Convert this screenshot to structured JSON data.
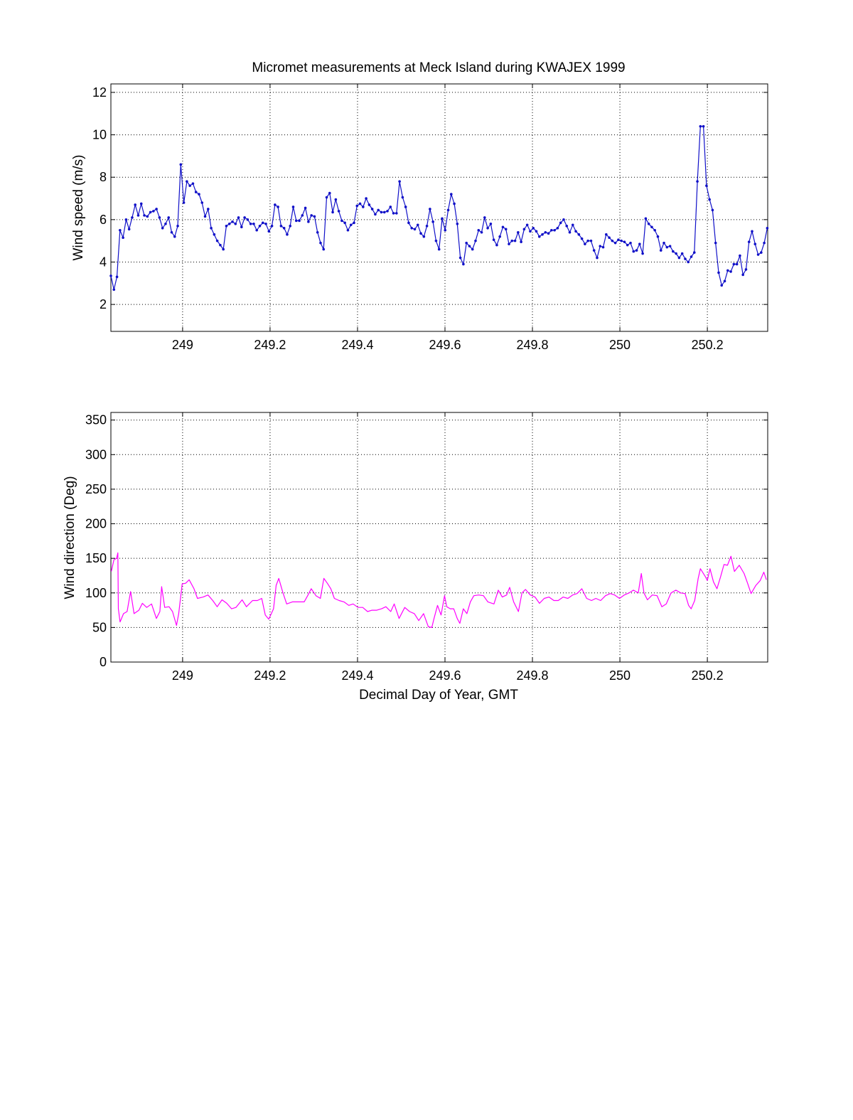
{
  "chart_data": [
    {
      "type": "line",
      "title": "Micromet measurements at Meck Island during KWAJEX 1999",
      "xlabel": "",
      "ylabel": "Wind speed (m/s)",
      "xlim": [
        248.836,
        250.338
      ],
      "ylim": [
        0.73,
        12.4
      ],
      "xticks": [
        249,
        249.2,
        249.4,
        249.6,
        249.8,
        250,
        250.2
      ],
      "xtick_labels": [
        "249",
        "249.2",
        "249.4",
        "249.6",
        "249.8",
        "250",
        "250.2"
      ],
      "yticks": [
        2,
        4,
        6,
        8,
        10,
        12
      ],
      "ytick_labels": [
        "2",
        "4",
        "6",
        "8",
        "10",
        "12"
      ],
      "grid": true,
      "color": "#1010c8",
      "marker": "dot",
      "series": [
        {
          "name": "Wind speed",
          "x_start": 248.836,
          "x_end": 250.337,
          "values": [
            3.35,
            2.7,
            3.3,
            5.5,
            5.15,
            6.0,
            5.55,
            6.1,
            6.7,
            6.2,
            6.75,
            6.2,
            6.15,
            6.35,
            6.4,
            6.5,
            6.1,
            5.6,
            5.8,
            6.1,
            5.4,
            5.2,
            5.7,
            8.6,
            6.8,
            7.8,
            7.6,
            7.7,
            7.3,
            7.2,
            6.8,
            6.15,
            6.5,
            5.6,
            5.3,
            5.0,
            4.8,
            4.6,
            5.7,
            5.8,
            5.9,
            5.8,
            6.1,
            5.65,
            6.1,
            6.0,
            5.8,
            5.8,
            5.5,
            5.7,
            5.85,
            5.8,
            5.45,
            5.7,
            6.7,
            6.6,
            5.7,
            5.6,
            5.3,
            5.7,
            6.6,
            5.95,
            5.95,
            6.2,
            6.55,
            5.9,
            6.2,
            6.15,
            5.4,
            4.9,
            4.6,
            7.05,
            7.25,
            6.35,
            6.95,
            6.4,
            5.95,
            5.85,
            5.5,
            5.75,
            5.85,
            6.65,
            6.75,
            6.6,
            7.0,
            6.7,
            6.5,
            6.25,
            6.45,
            6.35,
            6.35,
            6.4,
            6.6,
            6.3,
            6.3,
            7.8,
            7.05,
            6.6,
            5.85,
            5.6,
            5.55,
            5.75,
            5.35,
            5.2,
            5.7,
            6.5,
            5.9,
            5.0,
            4.6,
            6.05,
            5.5,
            6.45,
            7.2,
            6.75,
            5.8,
            4.2,
            3.9,
            4.9,
            4.75,
            4.6,
            5.0,
            5.5,
            5.4,
            6.1,
            5.6,
            5.8,
            5.05,
            4.8,
            5.2,
            5.65,
            5.55,
            4.85,
            5.0,
            5.0,
            5.4,
            4.95,
            5.55,
            5.75,
            5.45,
            5.6,
            5.45,
            5.2,
            5.3,
            5.4,
            5.35,
            5.5,
            5.5,
            5.6,
            5.85,
            6.0,
            5.7,
            5.4,
            5.75,
            5.45,
            5.3,
            5.1,
            4.85,
            5.0,
            5.0,
            4.55,
            4.2,
            4.75,
            4.7,
            5.3,
            5.15,
            5.0,
            4.9,
            5.05,
            5.0,
            4.95,
            4.8,
            4.9,
            4.5,
            4.55,
            4.85,
            4.4,
            6.05,
            5.8,
            5.65,
            5.5,
            5.2,
            4.55,
            4.9,
            4.7,
            4.75,
            4.5,
            4.4,
            4.2,
            4.4,
            4.15,
            4.0,
            4.25,
            4.45,
            7.8,
            10.4,
            10.4,
            7.6,
            6.95,
            6.45,
            4.9,
            3.5,
            2.9,
            3.1,
            3.6,
            3.55,
            3.9,
            3.9,
            4.3,
            3.4,
            3.65,
            4.95,
            5.45,
            4.85,
            4.35,
            4.45,
            4.9,
            5.6
          ]
        }
      ]
    },
    {
      "type": "line",
      "title": "",
      "xlabel": "Decimal Day of Year, GMT",
      "ylabel": "Wind direction (Deg)",
      "xlim": [
        248.836,
        250.338
      ],
      "ylim": [
        0,
        361
      ],
      "xticks": [
        249,
        249.2,
        249.4,
        249.6,
        249.8,
        250,
        250.2
      ],
      "xtick_labels": [
        "249",
        "249.2",
        "249.4",
        "249.6",
        "249.8",
        "250",
        "250.2"
      ],
      "yticks": [
        0,
        50,
        100,
        150,
        200,
        250,
        300,
        350
      ],
      "ytick_labels": [
        "0",
        "50",
        "100",
        "150",
        "200",
        "250",
        "300",
        "350"
      ],
      "grid": true,
      "color": "#ff00ff",
      "series": [
        {
          "name": "Wind direction",
          "points": [
            [
              248.837,
              131
            ],
            [
              248.843,
              148
            ],
            [
              248.849,
              150
            ],
            [
              248.852,
              158
            ],
            [
              248.853,
              77
            ],
            [
              248.857,
              58
            ],
            [
              248.865,
              70
            ],
            [
              248.873,
              73
            ],
            [
              248.881,
              102
            ],
            [
              248.889,
              70
            ],
            [
              248.9,
              75
            ],
            [
              248.908,
              85
            ],
            [
              248.918,
              79
            ],
            [
              248.929,
              84
            ],
            [
              248.94,
              63
            ],
            [
              248.948,
              73
            ],
            [
              248.952,
              109
            ],
            [
              248.959,
              79
            ],
            [
              248.969,
              80
            ],
            [
              248.977,
              73
            ],
            [
              248.986,
              53
            ],
            [
              248.991,
              70
            ],
            [
              248.999,
              113
            ],
            [
              249.007,
              114
            ],
            [
              249.015,
              119
            ],
            [
              249.026,
              106
            ],
            [
              249.034,
              92
            ],
            [
              249.047,
              94
            ],
            [
              249.058,
              97
            ],
            [
              249.069,
              89
            ],
            [
              249.079,
              80
            ],
            [
              249.09,
              90
            ],
            [
              249.101,
              85
            ],
            [
              249.112,
              77
            ],
            [
              249.122,
              79
            ],
            [
              249.136,
              90
            ],
            [
              249.146,
              80
            ],
            [
              249.16,
              89
            ],
            [
              249.171,
              89
            ],
            [
              249.181,
              92
            ],
            [
              249.189,
              68
            ],
            [
              249.197,
              62
            ],
            [
              249.208,
              77
            ],
            [
              249.214,
              111
            ],
            [
              249.22,
              121
            ],
            [
              249.229,
              101
            ],
            [
              249.238,
              84
            ],
            [
              249.251,
              87
            ],
            [
              249.264,
              87
            ],
            [
              249.278,
              87
            ],
            [
              249.286,
              96
            ],
            [
              249.294,
              106
            ],
            [
              249.305,
              96
            ],
            [
              249.315,
              92
            ],
            [
              249.323,
              121
            ],
            [
              249.331,
              114
            ],
            [
              249.339,
              106
            ],
            [
              249.347,
              92
            ],
            [
              249.358,
              89
            ],
            [
              249.369,
              87
            ],
            [
              249.38,
              82
            ],
            [
              249.39,
              84
            ],
            [
              249.401,
              79
            ],
            [
              249.412,
              79
            ],
            [
              249.423,
              73
            ],
            [
              249.433,
              75
            ],
            [
              249.444,
              75
            ],
            [
              249.455,
              77
            ],
            [
              249.465,
              80
            ],
            [
              249.476,
              73
            ],
            [
              249.484,
              84
            ],
            [
              249.495,
              63
            ],
            [
              249.508,
              79
            ],
            [
              249.519,
              73
            ],
            [
              249.53,
              70
            ],
            [
              249.54,
              60
            ],
            [
              249.551,
              70
            ],
            [
              249.562,
              51
            ],
            [
              249.57,
              50
            ],
            [
              249.575,
              63
            ],
            [
              249.583,
              82
            ],
            [
              249.591,
              68
            ],
            [
              249.599,
              96
            ],
            [
              249.604,
              80
            ],
            [
              249.612,
              77
            ],
            [
              249.62,
              77
            ],
            [
              249.628,
              63
            ],
            [
              249.634,
              56
            ],
            [
              249.642,
              77
            ],
            [
              249.65,
              70
            ],
            [
              249.658,
              87
            ],
            [
              249.666,
              96
            ],
            [
              249.677,
              97
            ],
            [
              249.688,
              96
            ],
            [
              249.698,
              87
            ],
            [
              249.712,
              84
            ],
            [
              249.722,
              104
            ],
            [
              249.731,
              94
            ],
            [
              249.741,
              97
            ],
            [
              249.748,
              108
            ],
            [
              249.757,
              87
            ],
            [
              249.768,
              73
            ],
            [
              249.776,
              100
            ],
            [
              249.784,
              105
            ],
            [
              249.795,
              97
            ],
            [
              249.806,
              94
            ],
            [
              249.816,
              85
            ],
            [
              249.827,
              92
            ],
            [
              249.838,
              94
            ],
            [
              249.849,
              89
            ],
            [
              249.859,
              89
            ],
            [
              249.87,
              94
            ],
            [
              249.881,
              92
            ],
            [
              249.892,
              97
            ],
            [
              249.902,
              99
            ],
            [
              249.913,
              106
            ],
            [
              249.924,
              92
            ],
            [
              249.935,
              89
            ],
            [
              249.945,
              92
            ],
            [
              249.956,
              89
            ],
            [
              249.967,
              96
            ],
            [
              249.978,
              99
            ],
            [
              249.988,
              97
            ],
            [
              249.999,
              92
            ],
            [
              250.01,
              97
            ],
            [
              250.021,
              100
            ],
            [
              250.031,
              104
            ],
            [
              250.042,
              100
            ],
            [
              250.049,
              128
            ],
            [
              250.055,
              100
            ],
            [
              250.063,
              90
            ],
            [
              250.074,
              97
            ],
            [
              250.085,
              96
            ],
            [
              250.096,
              80
            ],
            [
              250.106,
              84
            ],
            [
              250.117,
              100
            ],
            [
              250.128,
              104
            ],
            [
              250.139,
              100
            ],
            [
              250.149,
              99
            ],
            [
              250.157,
              82
            ],
            [
              250.163,
              77
            ],
            [
              250.171,
              89
            ],
            [
              250.179,
              121
            ],
            [
              250.184,
              135
            ],
            [
              250.195,
              124
            ],
            [
              250.2,
              118
            ],
            [
              250.206,
              135
            ],
            [
              250.214,
              116
            ],
            [
              250.222,
              106
            ],
            [
              250.23,
              123
            ],
            [
              250.238,
              141
            ],
            [
              250.246,
              140
            ],
            [
              250.254,
              153
            ],
            [
              250.262,
              131
            ],
            [
              250.273,
              140
            ],
            [
              250.284,
              128
            ],
            [
              250.292,
              114
            ],
            [
              250.3,
              99
            ],
            [
              250.311,
              111
            ],
            [
              250.321,
              118
            ],
            [
              250.329,
              130
            ],
            [
              250.335,
              119
            ]
          ]
        }
      ]
    }
  ]
}
